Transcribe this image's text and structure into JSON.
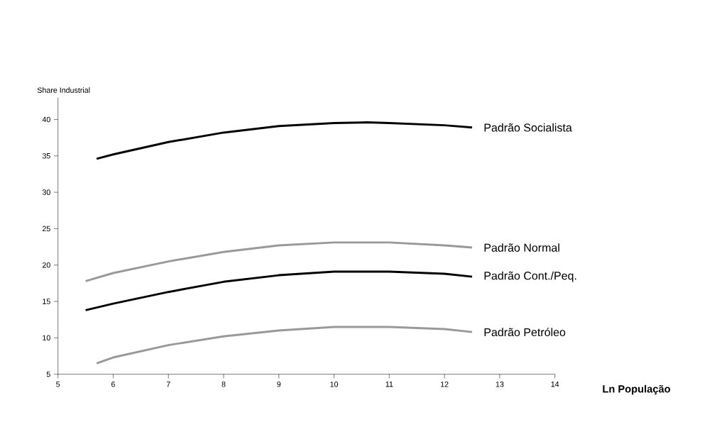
{
  "chart_data": {
    "type": "line",
    "xlabel": "Ln População",
    "ylabel": "Share Industrial",
    "xlim": [
      5,
      14
    ],
    "xticks": [
      5,
      6,
      7,
      8,
      9,
      10,
      11,
      12,
      13,
      14
    ],
    "ylim": [
      5,
      43
    ],
    "yticks": [
      5,
      10,
      15,
      20,
      25,
      30,
      35,
      40
    ],
    "grid": false,
    "legend": false,
    "marker": "none",
    "line_style": "solid",
    "series": [
      {
        "name": "Padrão Socialista",
        "color": "#000000",
        "x": [
          5.7,
          6,
          7,
          8,
          9,
          10,
          10.6,
          11,
          12,
          12.5
        ],
        "values": [
          34.6,
          35.2,
          36.9,
          38.2,
          39.1,
          39.5,
          39.6,
          39.5,
          39.2,
          38.9
        ]
      },
      {
        "name": "Padrão Normal",
        "color": "#999999",
        "x": [
          5.5,
          6,
          7,
          8,
          9,
          10,
          11,
          12,
          12.5
        ],
        "values": [
          17.8,
          18.9,
          20.5,
          21.8,
          22.7,
          23.1,
          23.1,
          22.7,
          22.4
        ]
      },
      {
        "name": "Padrão Cont./Peq.",
        "color": "#000000",
        "x": [
          5.5,
          6,
          7,
          8,
          9,
          10,
          11,
          12,
          12.5
        ],
        "values": [
          13.8,
          14.7,
          16.3,
          17.7,
          18.6,
          19.1,
          19.1,
          18.8,
          18.4
        ]
      },
      {
        "name": "Padrão Petróleo",
        "color": "#999999",
        "x": [
          5.7,
          6,
          7,
          8,
          9,
          10,
          11,
          12,
          12.5
        ],
        "values": [
          6.5,
          7.3,
          9.0,
          10.2,
          11.0,
          11.5,
          11.5,
          11.2,
          10.8
        ]
      }
    ]
  }
}
